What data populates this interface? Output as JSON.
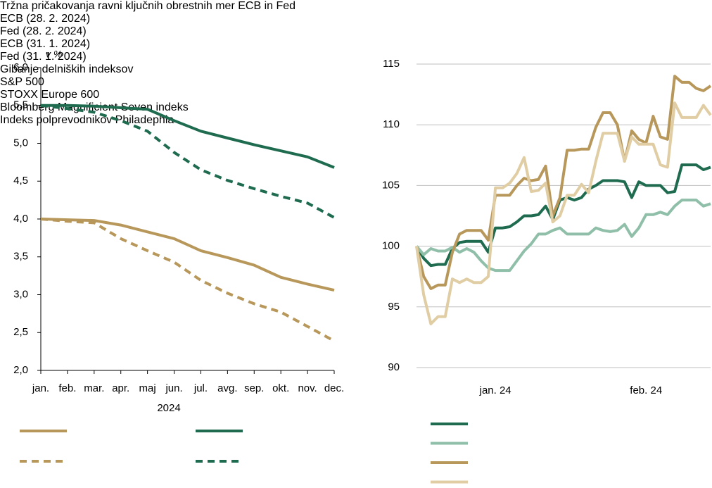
{
  "chart_data": [
    {
      "type": "line",
      "title": "Tržna pričakovanja ravni ključnih obrestnih mer ECB in Fed",
      "y_label": "v %",
      "x_label": "2024",
      "categories": [
        "jan.",
        "feb.",
        "mar.",
        "apr.",
        "maj",
        "jun.",
        "jul.",
        "avg.",
        "sep.",
        "okt.",
        "nov.",
        "dec."
      ],
      "series": [
        {
          "name": "ECB (28. 2. 2024)",
          "color": "#b8975a",
          "dashed": false,
          "values": [
            4.0,
            3.99,
            3.98,
            3.92,
            3.83,
            3.74,
            3.58,
            3.49,
            3.39,
            3.23,
            3.14,
            3.06
          ]
        },
        {
          "name": "Fed (28. 2. 2024)",
          "color": "#1e6b4f",
          "dashed": false,
          "values": [
            5.5,
            5.5,
            5.49,
            5.47,
            5.45,
            5.3,
            5.16,
            5.07,
            4.98,
            4.9,
            4.82,
            4.68
          ]
        },
        {
          "name": "ECB (31. 1. 2024)",
          "color": "#b8975a",
          "dashed": true,
          "values": [
            4.0,
            3.97,
            3.95,
            3.74,
            3.58,
            3.43,
            3.19,
            3.02,
            2.88,
            2.77,
            2.58,
            2.39
          ]
        },
        {
          "name": "Fed (31. 1. 2024)",
          "color": "#1e6b4f",
          "dashed": true,
          "values": [
            5.5,
            5.46,
            5.41,
            5.3,
            5.16,
            4.88,
            4.65,
            4.51,
            4.4,
            4.3,
            4.21,
            4.02
          ]
        }
      ],
      "ylim": [
        2,
        6
      ],
      "yticks": [
        {
          "value": 2,
          "label": "2,0"
        },
        {
          "value": 2.5,
          "label": "2,5"
        },
        {
          "value": 3,
          "label": "3,0"
        },
        {
          "value": 3.5,
          "label": "3,5"
        },
        {
          "value": 4,
          "label": "4,0"
        },
        {
          "value": 4.5,
          "label": "4,5"
        },
        {
          "value": 5,
          "label": "5,0"
        },
        {
          "value": 5.5,
          "label": "5,5"
        },
        {
          "value": 6,
          "label": "6,0"
        }
      ],
      "grid": false
    },
    {
      "type": "line",
      "title": "Gibanje delniških indeksov",
      "categories": [
        null,
        null,
        null,
        null,
        null,
        null,
        null,
        null,
        null,
        null,
        null,
        "jan. 24",
        null,
        null,
        null,
        null,
        null,
        null,
        null,
        null,
        null,
        null,
        null,
        null,
        null,
        null,
        null,
        null,
        null,
        null,
        null,
        null,
        "feb. 24",
        null,
        null,
        null,
        null,
        null,
        null,
        null,
        null,
        null
      ],
      "series": [
        {
          "name": "S&P 500",
          "color": "#1e6b4f",
          "dashed": false,
          "values": [
            100,
            99,
            98.4,
            98.5,
            98.5,
            99.8,
            100.3,
            100.4,
            100.4,
            100.4,
            99.5,
            101.5,
            101.5,
            101.6,
            102,
            102.5,
            102.5,
            102.6,
            103.3,
            102.2,
            103.8,
            104,
            103.8,
            104,
            104.7,
            105,
            105.4,
            105.4,
            105.4,
            105.3,
            104,
            105.3,
            105,
            105,
            105,
            104.4,
            104.5,
            106.7,
            106.7,
            106.7,
            106.3,
            106.5
          ]
        },
        {
          "name": "STOXX Europe 600",
          "color": "#8fbfa8",
          "dashed": false,
          "values": [
            100,
            99.3,
            99.8,
            99.6,
            99.6,
            99.9,
            99.5,
            99.8,
            99.5,
            98.8,
            98.2,
            98,
            98,
            98,
            98.8,
            99.6,
            100.2,
            101,
            101,
            101.3,
            101.5,
            101,
            101,
            101,
            101,
            101.5,
            101.3,
            101.2,
            101.3,
            101.8,
            100.8,
            101.5,
            102.6,
            102.6,
            102.8,
            102.6,
            103.3,
            103.8,
            103.8,
            103.8,
            103.3,
            103.5
          ]
        },
        {
          "name": "Bloomberg Magnificient Seven indeks",
          "color": "#b8975a",
          "dashed": false,
          "values": [
            100,
            97.5,
            96.5,
            96.8,
            96.8,
            99.5,
            101,
            101.3,
            101.3,
            101.3,
            100.5,
            104.2,
            104.2,
            104.2,
            105,
            105.6,
            105.4,
            105.5,
            106.6,
            102.5,
            104,
            107.9,
            107.9,
            108,
            108,
            109.8,
            111,
            111,
            110,
            107,
            109.5,
            108.8,
            108.5,
            110.7,
            109,
            108.8,
            114,
            113.5,
            113.5,
            113,
            112.8,
            113.2
          ]
        },
        {
          "name": "Indeks polprevodnikov Philadephia",
          "color": "#e0cda3",
          "dashed": false,
          "values": [
            100,
            96,
            93.6,
            94.2,
            94.2,
            97.3,
            97,
            97.3,
            97,
            97,
            97.5,
            104.8,
            104.8,
            105.2,
            106,
            107.3,
            104.5,
            104.6,
            105.2,
            102,
            102.5,
            104.2,
            104.2,
            105.1,
            104.4,
            107,
            109.3,
            109.3,
            109.3,
            107,
            109,
            108.4,
            108.4,
            108.4,
            106.7,
            106.5,
            111.8,
            110.6,
            110.6,
            110.6,
            111.6,
            110.8
          ]
        }
      ],
      "ylim": [
        90,
        115
      ],
      "yticks": [
        90,
        95,
        100,
        105,
        110,
        115
      ],
      "grid": true
    }
  ]
}
